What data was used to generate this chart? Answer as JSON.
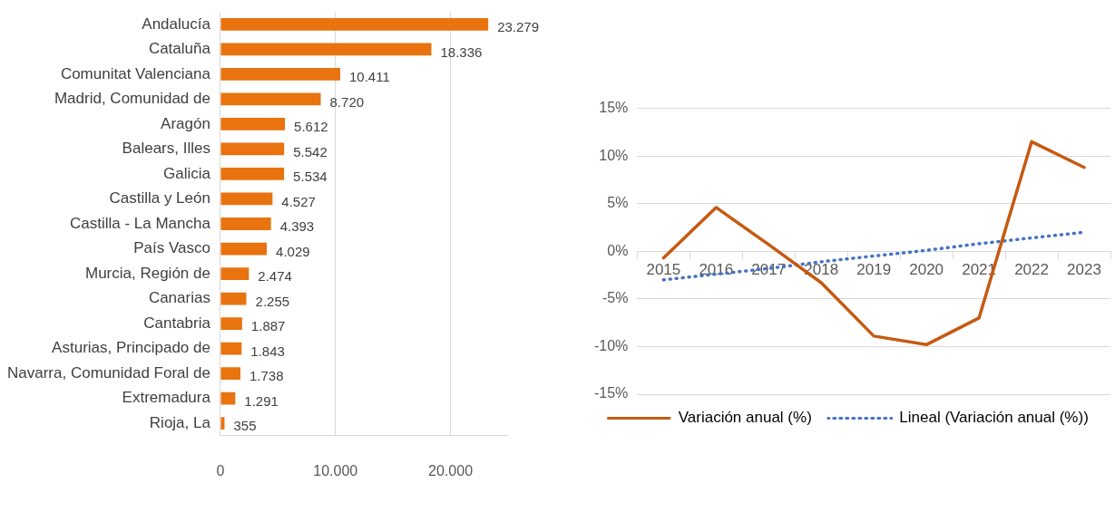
{
  "chart_data": [
    {
      "type": "bar",
      "orientation": "horizontal",
      "categories": [
        "Andalucía",
        "Cataluña",
        "Comunitat Valenciana",
        "Madrid, Comunidad de",
        "Aragón",
        "Balears, Illes",
        "Galicia",
        "Castilla y León",
        "Castilla - La Mancha",
        "País Vasco",
        "Murcia, Región de",
        "Canarias",
        "Cantabria",
        "Asturias, Principado de",
        "Navarra, Comunidad Foral de",
        "Extremadura",
        "Rioja, La"
      ],
      "values": [
        23279,
        18336,
        10411,
        8720,
        5612,
        5542,
        5534,
        4527,
        4393,
        4029,
        2474,
        2255,
        1887,
        1843,
        1738,
        1291,
        355
      ],
      "value_labels": [
        "23.279",
        "18.336",
        "10.411",
        "8.720",
        "5.612",
        "5.542",
        "5.534",
        "4.527",
        "4.393",
        "4.029",
        "2.474",
        "2.255",
        "1.887",
        "1.843",
        "1.738",
        "1.291",
        "355"
      ],
      "color": "#e8730f",
      "xlim": [
        0,
        25000
      ],
      "xticks": [
        0,
        {
          "value": 10000,
          "label": "10.000"
        },
        {
          "value": 20000,
          "label": "20.000"
        }
      ],
      "grid": "x",
      "legend": false
    },
    {
      "type": "line",
      "categories": [
        "2015",
        "2016",
        "2017",
        "2018",
        "2019",
        "2020",
        "2021",
        "2022",
        "2023"
      ],
      "series": [
        {
          "name": "Variación anual (%)",
          "color": "#c55a11",
          "line_style": "solid",
          "values": [
            -0.7,
            4.6,
            0.7,
            -3.3,
            -8.9,
            -9.8,
            -7.0,
            11.5,
            8.8
          ]
        },
        {
          "name": "Lineal (Variación anual (%))",
          "color": "#4472c4",
          "line_style": "dotted",
          "values": [
            -3.0,
            -2.4,
            -1.8,
            -1.1,
            -0.5,
            0.1,
            0.8,
            1.4,
            2.0
          ]
        }
      ],
      "ylim": [
        -15,
        15
      ],
      "yticks": [
        {
          "value": -15,
          "label": "-15%"
        },
        {
          "value": -10,
          "label": "-10%"
        },
        {
          "value": -5,
          "label": "-5%"
        },
        {
          "value": 0,
          "label": "0%"
        },
        {
          "value": 5,
          "label": "5%"
        },
        {
          "value": 10,
          "label": "10%"
        },
        {
          "value": 15,
          "label": "15%"
        }
      ],
      "grid": "y",
      "legend": "bottom",
      "marker": "none"
    }
  ]
}
